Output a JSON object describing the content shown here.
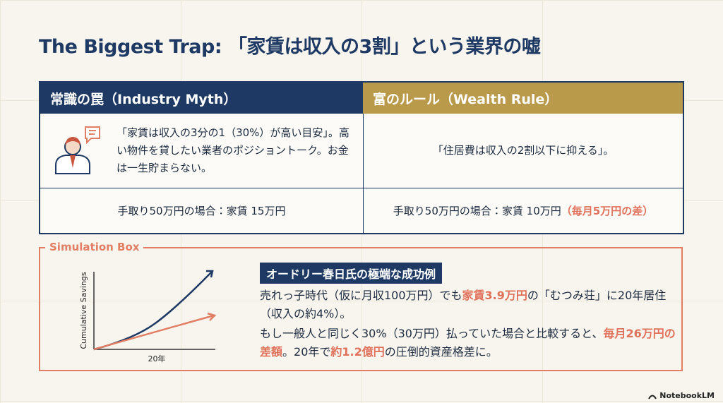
{
  "header": {
    "title": "The Biggest Trap: 「家賃は収入の3割」という業界の嘘"
  },
  "table": {
    "headers": [
      "常識の罠（Industry Myth）",
      "富のルール（Wealth Rule）"
    ],
    "rows": [
      [
        "「家賃は収入の3分の1（30%）が高い目安」。高い物件を貸したい業者のポジショントーク。お金は一生貯まらない。",
        "「住居費は収入の2割以下に抑える」。"
      ],
      [
        "手取り50万円の場合：家賃 15万円",
        [
          "手取り50万円の場合：家賃 10万円",
          "（毎月5万円の差）"
        ]
      ]
    ]
  },
  "simulation": {
    "label": "Simulation Box",
    "chart": {
      "y_label": "Cumulative Savings",
      "x_label": "20年"
    },
    "heading": "オードリー春日氏の極端な成功例",
    "paragraphs": [
      [
        "売れっ子時代（仮に月収100万円）でも",
        "家賃3.9万円",
        "の「むつみ荘」に20年居住（収入の約4%）。"
      ],
      [
        "もし一般人と同じく30%（30万円）払っていた場合と比較すると、",
        "毎月26万円の差額",
        "。20年で",
        "約1.2億円",
        "の圧倒的資産格差に。"
      ]
    ]
  },
  "footer": {
    "brand": "NotebookLM"
  }
}
